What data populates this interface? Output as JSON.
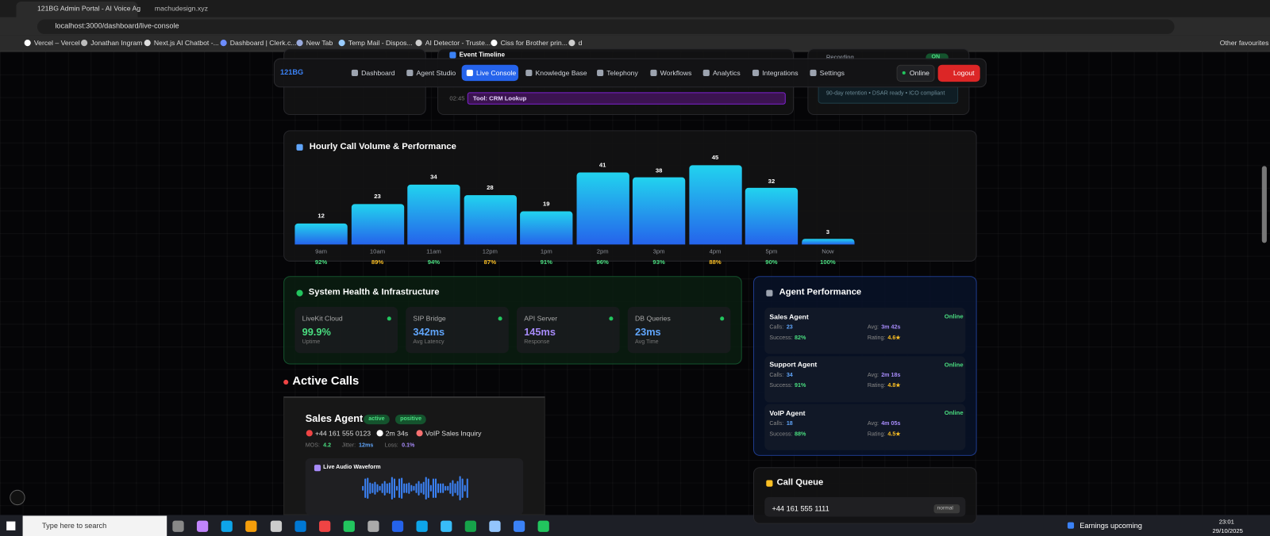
{
  "browser": {
    "tabs": [
      "121BG Admin Portal - AI Voice Ag",
      "machudesign.xyz"
    ],
    "url": "localhost:3000/dashboard/live-console",
    "bookmarks": [
      "Vercel – Vercel",
      "Jonathan Ingram",
      "Next.js AI Chatbot -...",
      "Dashboard | Clerk.c...",
      "New Tab",
      "Temp Mail - Dispos...",
      "AI Detector - Truste...",
      "Ciss for Brother prin...",
      "d"
    ],
    "other_favourites": "Other favourites"
  },
  "nav": {
    "logo": "121BG",
    "items": [
      "Dashboard",
      "Agent Studio",
      "Live Console",
      "Knowledge Base",
      "Telephony",
      "Workflows",
      "Analytics",
      "Integrations",
      "Settings"
    ],
    "active_item": 2,
    "status": "Online",
    "logout": "Logout"
  },
  "background": {
    "event_timeline": "Event Timeline",
    "event_time": "02:45",
    "event_label": "Tool: CRM Lookup",
    "recording": "Recording",
    "recording_state": "ON",
    "retention": "90-day retention • DSAR ready • ICO compliant"
  },
  "hourly_chart": {
    "title": "Hourly Call Volume & Performance",
    "categories": [
      "9am",
      "10am",
      "11am",
      "12pm",
      "1pm",
      "2pm",
      "3pm",
      "4pm",
      "5pm",
      "Now"
    ],
    "values": [
      12,
      23,
      34,
      28,
      19,
      41,
      38,
      45,
      32,
      3
    ],
    "success_rates": [
      "92%",
      "89%",
      "94%",
      "87%",
      "91%",
      "96%",
      "93%",
      "88%",
      "90%",
      "100%"
    ]
  },
  "system_health": {
    "title": "System Health & Infrastructure",
    "services": [
      {
        "name": "LiveKit Cloud",
        "value": "99.9%",
        "caption": "Uptime",
        "color": "#4ade80"
      },
      {
        "name": "SIP Bridge",
        "value": "342ms",
        "caption": "Avg Latency",
        "color": "#60a5fa"
      },
      {
        "name": "API Server",
        "value": "145ms",
        "caption": "Response",
        "color": "#a78bfa"
      },
      {
        "name": "DB Queries",
        "value": "23ms",
        "caption": "Avg Time",
        "color": "#60a5fa"
      }
    ]
  },
  "agent_performance": {
    "title": "Agent Performance",
    "labels": {
      "calls": "Calls:",
      "avg": "Avg:",
      "success": "Success:",
      "rating": "Rating:"
    },
    "agents": [
      {
        "name": "Sales Agent",
        "status": "Online",
        "calls": "23",
        "avg": "3m 42s",
        "success": "82%",
        "rating": "4.6★"
      },
      {
        "name": "Support Agent",
        "status": "Online",
        "calls": "34",
        "avg": "2m 18s",
        "success": "91%",
        "rating": "4.8★"
      },
      {
        "name": "VoIP Agent",
        "status": "Online",
        "calls": "18",
        "avg": "4m 05s",
        "success": "88%",
        "rating": "4.5★"
      }
    ]
  },
  "active_calls": {
    "title": "Active Calls",
    "call": {
      "agent": "Sales Agent",
      "state": "active",
      "sentiment": "positive",
      "phone": "+44 161 555 0123",
      "duration": "2m 34s",
      "topic": "VoIP Sales Inquiry",
      "mos_label": "MOS:",
      "mos": "4.2",
      "jitter_label": "Jitter:",
      "jitter": "12ms",
      "loss_label": "Loss:",
      "loss": "0.1%",
      "waveform": "Live Audio Waveform"
    }
  },
  "call_queue": {
    "title": "Call Queue",
    "items": [
      {
        "phone": "+44 161 555 1111",
        "priority": "normal"
      }
    ]
  },
  "taskbar": {
    "search": "Type here to search",
    "news": "Earnings upcoming",
    "time": "23:01",
    "date": "29/10/2025"
  }
}
